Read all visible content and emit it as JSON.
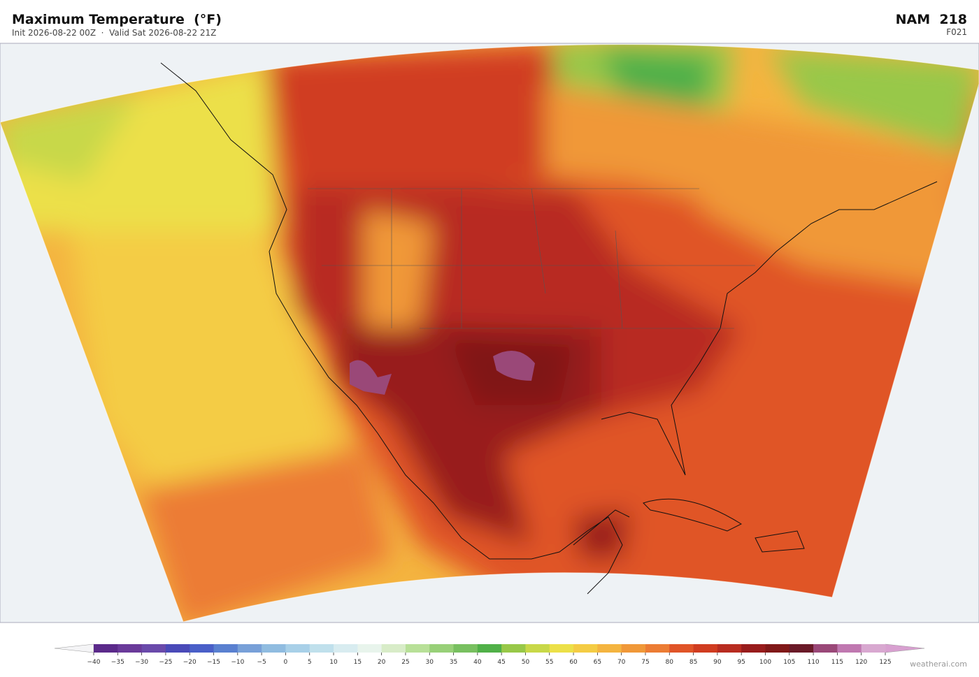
{
  "header": {
    "title": "Maximum Temperature  (°F)",
    "subtitle": "Init 2026-08-22 00Z  ·  Valid Sat 2026-08-22 21Z",
    "model": "NAM  218",
    "forecast": "F021"
  },
  "colorbar": {
    "ticks": [
      {
        "value": -40,
        "label": "−40"
      },
      {
        "value": -35,
        "label": "−35"
      },
      {
        "value": -30,
        "label": "−30"
      },
      {
        "value": -25,
        "label": "−25"
      },
      {
        "value": -20,
        "label": "−20"
      },
      {
        "value": -15,
        "label": "−15"
      },
      {
        "value": -10,
        "label": "−10"
      },
      {
        "value": -5,
        "label": "−5"
      },
      0,
      5,
      10,
      15,
      20,
      25,
      30,
      35,
      40,
      45,
      50,
      55,
      60,
      65,
      70,
      75,
      80,
      85,
      90,
      95,
      100,
      105,
      110,
      115,
      120,
      125
    ],
    "colors": [
      "#5b2a8a",
      "#6a3a9a",
      "#6a4aaa",
      "#4a4ab8",
      "#4a5fc8",
      "#5a80d0",
      "#78a0d8",
      "#90bce0",
      "#a8d0e8",
      "#c0e0ec",
      "#d8ecf0",
      "#e8f4ec",
      "#d8ecc8",
      "#b8e098",
      "#98d078",
      "#78c060",
      "#50b048",
      "#98c848",
      "#c8d848",
      "#ece048",
      "#f4cc44",
      "#f4b440",
      "#f09838",
      "#ec7c34",
      "#e05428",
      "#d03c20",
      "#b82c20",
      "#981c1c",
      "#801818",
      "#6a1a28",
      "#9a4878",
      "#c078b0",
      "#d8a8d0"
    ],
    "extend_colors": [
      "#f4f4f6",
      "#d8a0d0"
    ]
  },
  "credit": "weatherai.com"
}
